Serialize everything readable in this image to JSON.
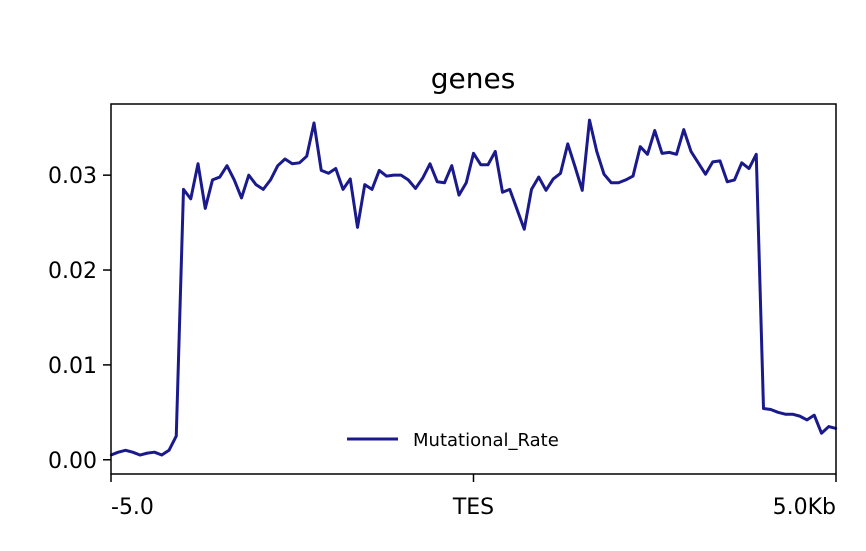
{
  "chart_data": {
    "type": "line",
    "title": "genes",
    "xlabel": "",
    "ylabel": "",
    "x_tick_labels": [
      "-5.0",
      "TES",
      "5.0Kb"
    ],
    "y_ticks": [
      0.0,
      0.01,
      0.02,
      0.03
    ],
    "y_tick_labels": [
      "0.00",
      "0.01",
      "0.02",
      "0.03"
    ],
    "ylim": [
      -0.0015,
      0.0375
    ],
    "x_range": [
      0,
      100
    ],
    "grid": false,
    "legend_position": "lower-center",
    "series": [
      {
        "name": "Mutational_Rate",
        "color": "#1a1a8c",
        "x": [
          0,
          1,
          2,
          3,
          4,
          5,
          6,
          7,
          8,
          9,
          10,
          11,
          12,
          13,
          14,
          15,
          16,
          17,
          18,
          19,
          20,
          21,
          22,
          23,
          24,
          25,
          26,
          27,
          28,
          29,
          30,
          31,
          32,
          33,
          34,
          35,
          36,
          37,
          38,
          39,
          40,
          41,
          42,
          43,
          44,
          45,
          46,
          47,
          48,
          49,
          50,
          51,
          52,
          53,
          54,
          55,
          56,
          57,
          58,
          59,
          60,
          61,
          62,
          63,
          64,
          65,
          66,
          67,
          68,
          69,
          70,
          71,
          72,
          73,
          74,
          75,
          76,
          77,
          78,
          79,
          80,
          81,
          82,
          83,
          84,
          85,
          86,
          87,
          88,
          89,
          90,
          91,
          92,
          93,
          94,
          95,
          96,
          97,
          98,
          99,
          100
        ],
        "values": [
          0.0005,
          0.0008,
          0.001,
          0.0008,
          0.0005,
          0.0007,
          0.0008,
          0.0005,
          0.001,
          0.0025,
          0.0285,
          0.0275,
          0.0312,
          0.0265,
          0.0295,
          0.0298,
          0.031,
          0.0295,
          0.0276,
          0.03,
          0.029,
          0.0285,
          0.0295,
          0.031,
          0.0317,
          0.0312,
          0.0313,
          0.032,
          0.0355,
          0.0305,
          0.0302,
          0.0307,
          0.0285,
          0.0296,
          0.0245,
          0.029,
          0.0285,
          0.0305,
          0.0299,
          0.03,
          0.03,
          0.0295,
          0.0286,
          0.0297,
          0.0312,
          0.0293,
          0.0292,
          0.031,
          0.0279,
          0.0292,
          0.0323,
          0.0311,
          0.0311,
          0.0325,
          0.0282,
          0.0285,
          0.0264,
          0.0243,
          0.0285,
          0.0298,
          0.0284,
          0.0296,
          0.0302,
          0.0333,
          0.0309,
          0.0284,
          0.0358,
          0.0325,
          0.0301,
          0.0292,
          0.0292,
          0.0295,
          0.0299,
          0.033,
          0.0322,
          0.0347,
          0.0323,
          0.0324,
          0.0322,
          0.0348,
          0.0325,
          0.0313,
          0.0301,
          0.0314,
          0.0315,
          0.0293,
          0.0295,
          0.0313,
          0.0307,
          0.0322,
          0.0054,
          0.0053,
          0.005,
          0.0048,
          0.0048,
          0.0046,
          0.0042,
          0.0047,
          0.0028,
          0.0035,
          0.0033
        ]
      }
    ]
  }
}
